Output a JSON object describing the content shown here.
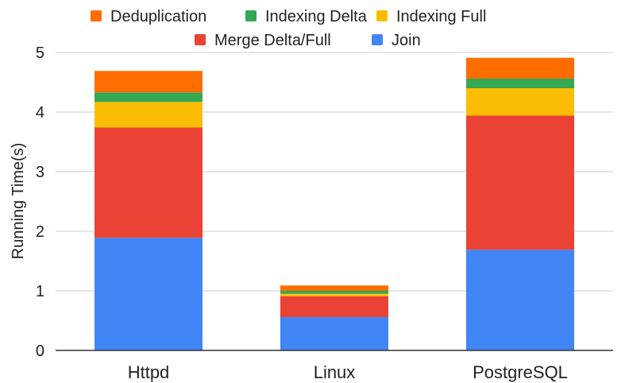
{
  "chart_data": {
    "type": "bar",
    "stacked": true,
    "title": "",
    "xlabel": "",
    "ylabel": "Running Time(s)",
    "ylim": [
      0,
      5
    ],
    "yticks": [
      "0",
      "1",
      "2",
      "3",
      "4",
      "5"
    ],
    "grid": true,
    "legend_position": "top",
    "categories": [
      "Httpd",
      "Linux",
      "PostgreSQL"
    ],
    "series": [
      {
        "name": "Join",
        "color": "#4285f4",
        "values": [
          1.89,
          0.56,
          1.69
        ]
      },
      {
        "name": "Merge Delta/Full",
        "color": "#ea4335",
        "values": [
          1.85,
          0.35,
          2.25
        ]
      },
      {
        "name": "Indexing Full",
        "color": "#fbbc04",
        "values": [
          0.43,
          0.04,
          0.46
        ]
      },
      {
        "name": "Indexing Delta",
        "color": "#34a853",
        "values": [
          0.16,
          0.05,
          0.16
        ]
      },
      {
        "name": "Deduplication",
        "color": "#ff6d01",
        "values": [
          0.36,
          0.09,
          0.35
        ]
      }
    ],
    "legend_order": [
      "Deduplication",
      "Indexing Delta",
      "Indexing Full",
      "Merge Delta/Full",
      "Join"
    ]
  }
}
